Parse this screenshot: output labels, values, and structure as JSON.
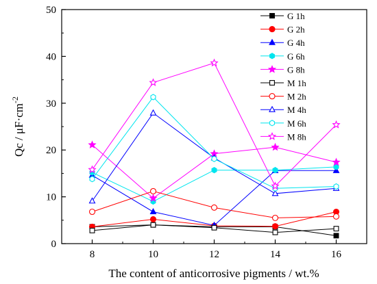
{
  "chart_data": {
    "type": "line",
    "xlabel": "The content of anticorrosive pigments / wt.%",
    "ylabel_parts": {
      "main": "Qc / μF·cm",
      "sup": "-2"
    },
    "xlim": [
      7,
      17
    ],
    "ylim": [
      0,
      50
    ],
    "x": [
      8,
      10,
      12,
      14,
      16
    ],
    "xticks": [
      8,
      10,
      12,
      14,
      16
    ],
    "yticks": [
      0,
      10,
      20,
      30,
      40,
      50
    ],
    "legend_position": "top-right",
    "grid": false,
    "series": [
      {
        "name": "G  1h",
        "marker": "square",
        "filled": true,
        "color": "#000000",
        "values": [
          3.6,
          4.0,
          3.6,
          3.6,
          1.7
        ]
      },
      {
        "name": "G  2h",
        "marker": "circle",
        "filled": true,
        "color": "#ff0000",
        "values": [
          3.6,
          5.2,
          3.8,
          3.7,
          6.8
        ]
      },
      {
        "name": "G  4h",
        "marker": "triangle",
        "filled": true,
        "color": "#0000ff",
        "values": [
          14.6,
          6.8,
          3.9,
          15.6,
          15.6
        ]
      },
      {
        "name": "G  6h",
        "marker": "hexagon",
        "filled": true,
        "color": "#00e5ee",
        "values": [
          15.2,
          9.0,
          15.7,
          15.7,
          16.4
        ]
      },
      {
        "name": "G  8h",
        "marker": "star",
        "filled": true,
        "color": "#ff00ff",
        "values": [
          21.1,
          9.7,
          19.2,
          20.6,
          17.4
        ]
      },
      {
        "name": "M  1h",
        "marker": "square",
        "filled": false,
        "color": "#000000",
        "values": [
          2.8,
          4.0,
          3.4,
          2.4,
          3.2
        ]
      },
      {
        "name": "M  2h",
        "marker": "circle",
        "filled": false,
        "color": "#ff0000",
        "values": [
          6.8,
          11.2,
          7.7,
          5.5,
          5.8
        ]
      },
      {
        "name": "M  4h",
        "marker": "triangle",
        "filled": false,
        "color": "#0000ff",
        "values": [
          9.1,
          27.9,
          18.3,
          10.7,
          11.8
        ]
      },
      {
        "name": "M  6h",
        "marker": "hexagon",
        "filled": false,
        "color": "#00e5ee",
        "values": [
          13.8,
          31.3,
          18.1,
          11.8,
          12.2
        ]
      },
      {
        "name": "M  8h",
        "marker": "star",
        "filled": false,
        "color": "#ff00ff",
        "values": [
          15.8,
          34.4,
          38.6,
          12.3,
          25.4
        ]
      }
    ]
  }
}
